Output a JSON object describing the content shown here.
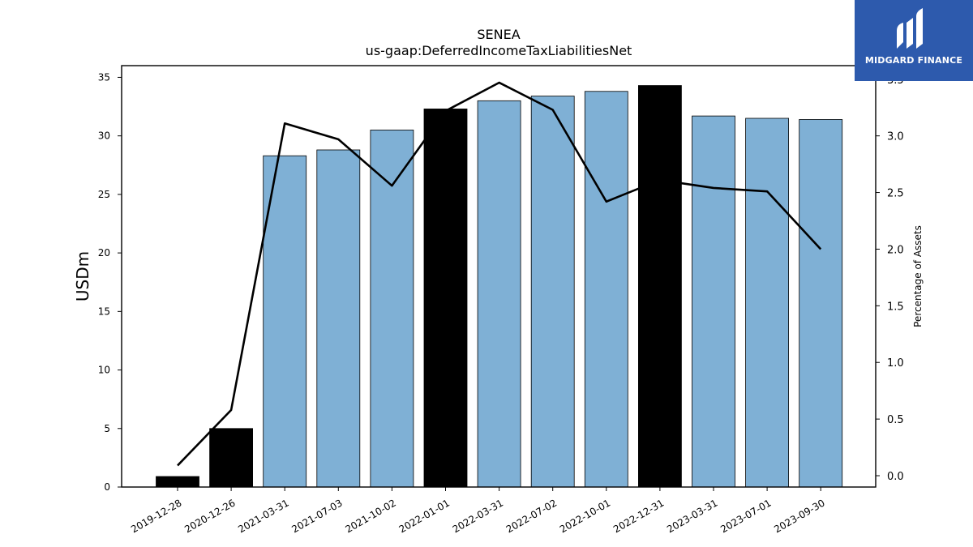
{
  "chart_data": {
    "type": "bar",
    "title": "SENEA",
    "subtitle": "us-gaap:DeferredIncomeTaxLiabilitiesNet",
    "ylabel": "USDm",
    "y2label": "Percentage of Assets",
    "ylim": [
      0,
      36
    ],
    "y2lim": [
      -0.1,
      3.62
    ],
    "yticks": [
      "0",
      "5",
      "10",
      "15",
      "20",
      "25",
      "30",
      "35"
    ],
    "y2ticks": [
      "0.0",
      "0.5",
      "1.0",
      "1.5",
      "2.0",
      "2.5",
      "3.0",
      "3.5"
    ],
    "categories": [
      "2019-12-28",
      "2020-12-26",
      "2021-03-31",
      "2021-07-03",
      "2021-10-02",
      "2022-01-01",
      "2022-03-31",
      "2022-07-02",
      "2022-10-01",
      "2022-12-31",
      "2023-03-31",
      "2023-07-01",
      "2023-09-30"
    ],
    "series": [
      {
        "type": "bar",
        "values": [
          0.9,
          5.0,
          28.3,
          28.8,
          30.5,
          32.3,
          33.0,
          33.4,
          33.8,
          34.3,
          31.7,
          31.5,
          31.4
        ],
        "colors": [
          "#000000",
          "#000000",
          "#7fb0d5",
          "#7fb0d5",
          "#7fb0d5",
          "#000000",
          "#7fb0d5",
          "#7fb0d5",
          "#7fb0d5",
          "#000000",
          "#7fb0d5",
          "#7fb0d5",
          "#7fb0d5"
        ]
      },
      {
        "type": "line",
        "axis": "right",
        "values": [
          0.09,
          0.58,
          3.11,
          2.97,
          2.56,
          3.22,
          3.47,
          3.23,
          2.42,
          2.61,
          2.54,
          2.51,
          2.0
        ],
        "color": "#000000"
      }
    ],
    "grid": false,
    "legend": "none"
  },
  "logo": {
    "text": "MIDGARD FINANCE",
    "color": "#2d5aad"
  }
}
